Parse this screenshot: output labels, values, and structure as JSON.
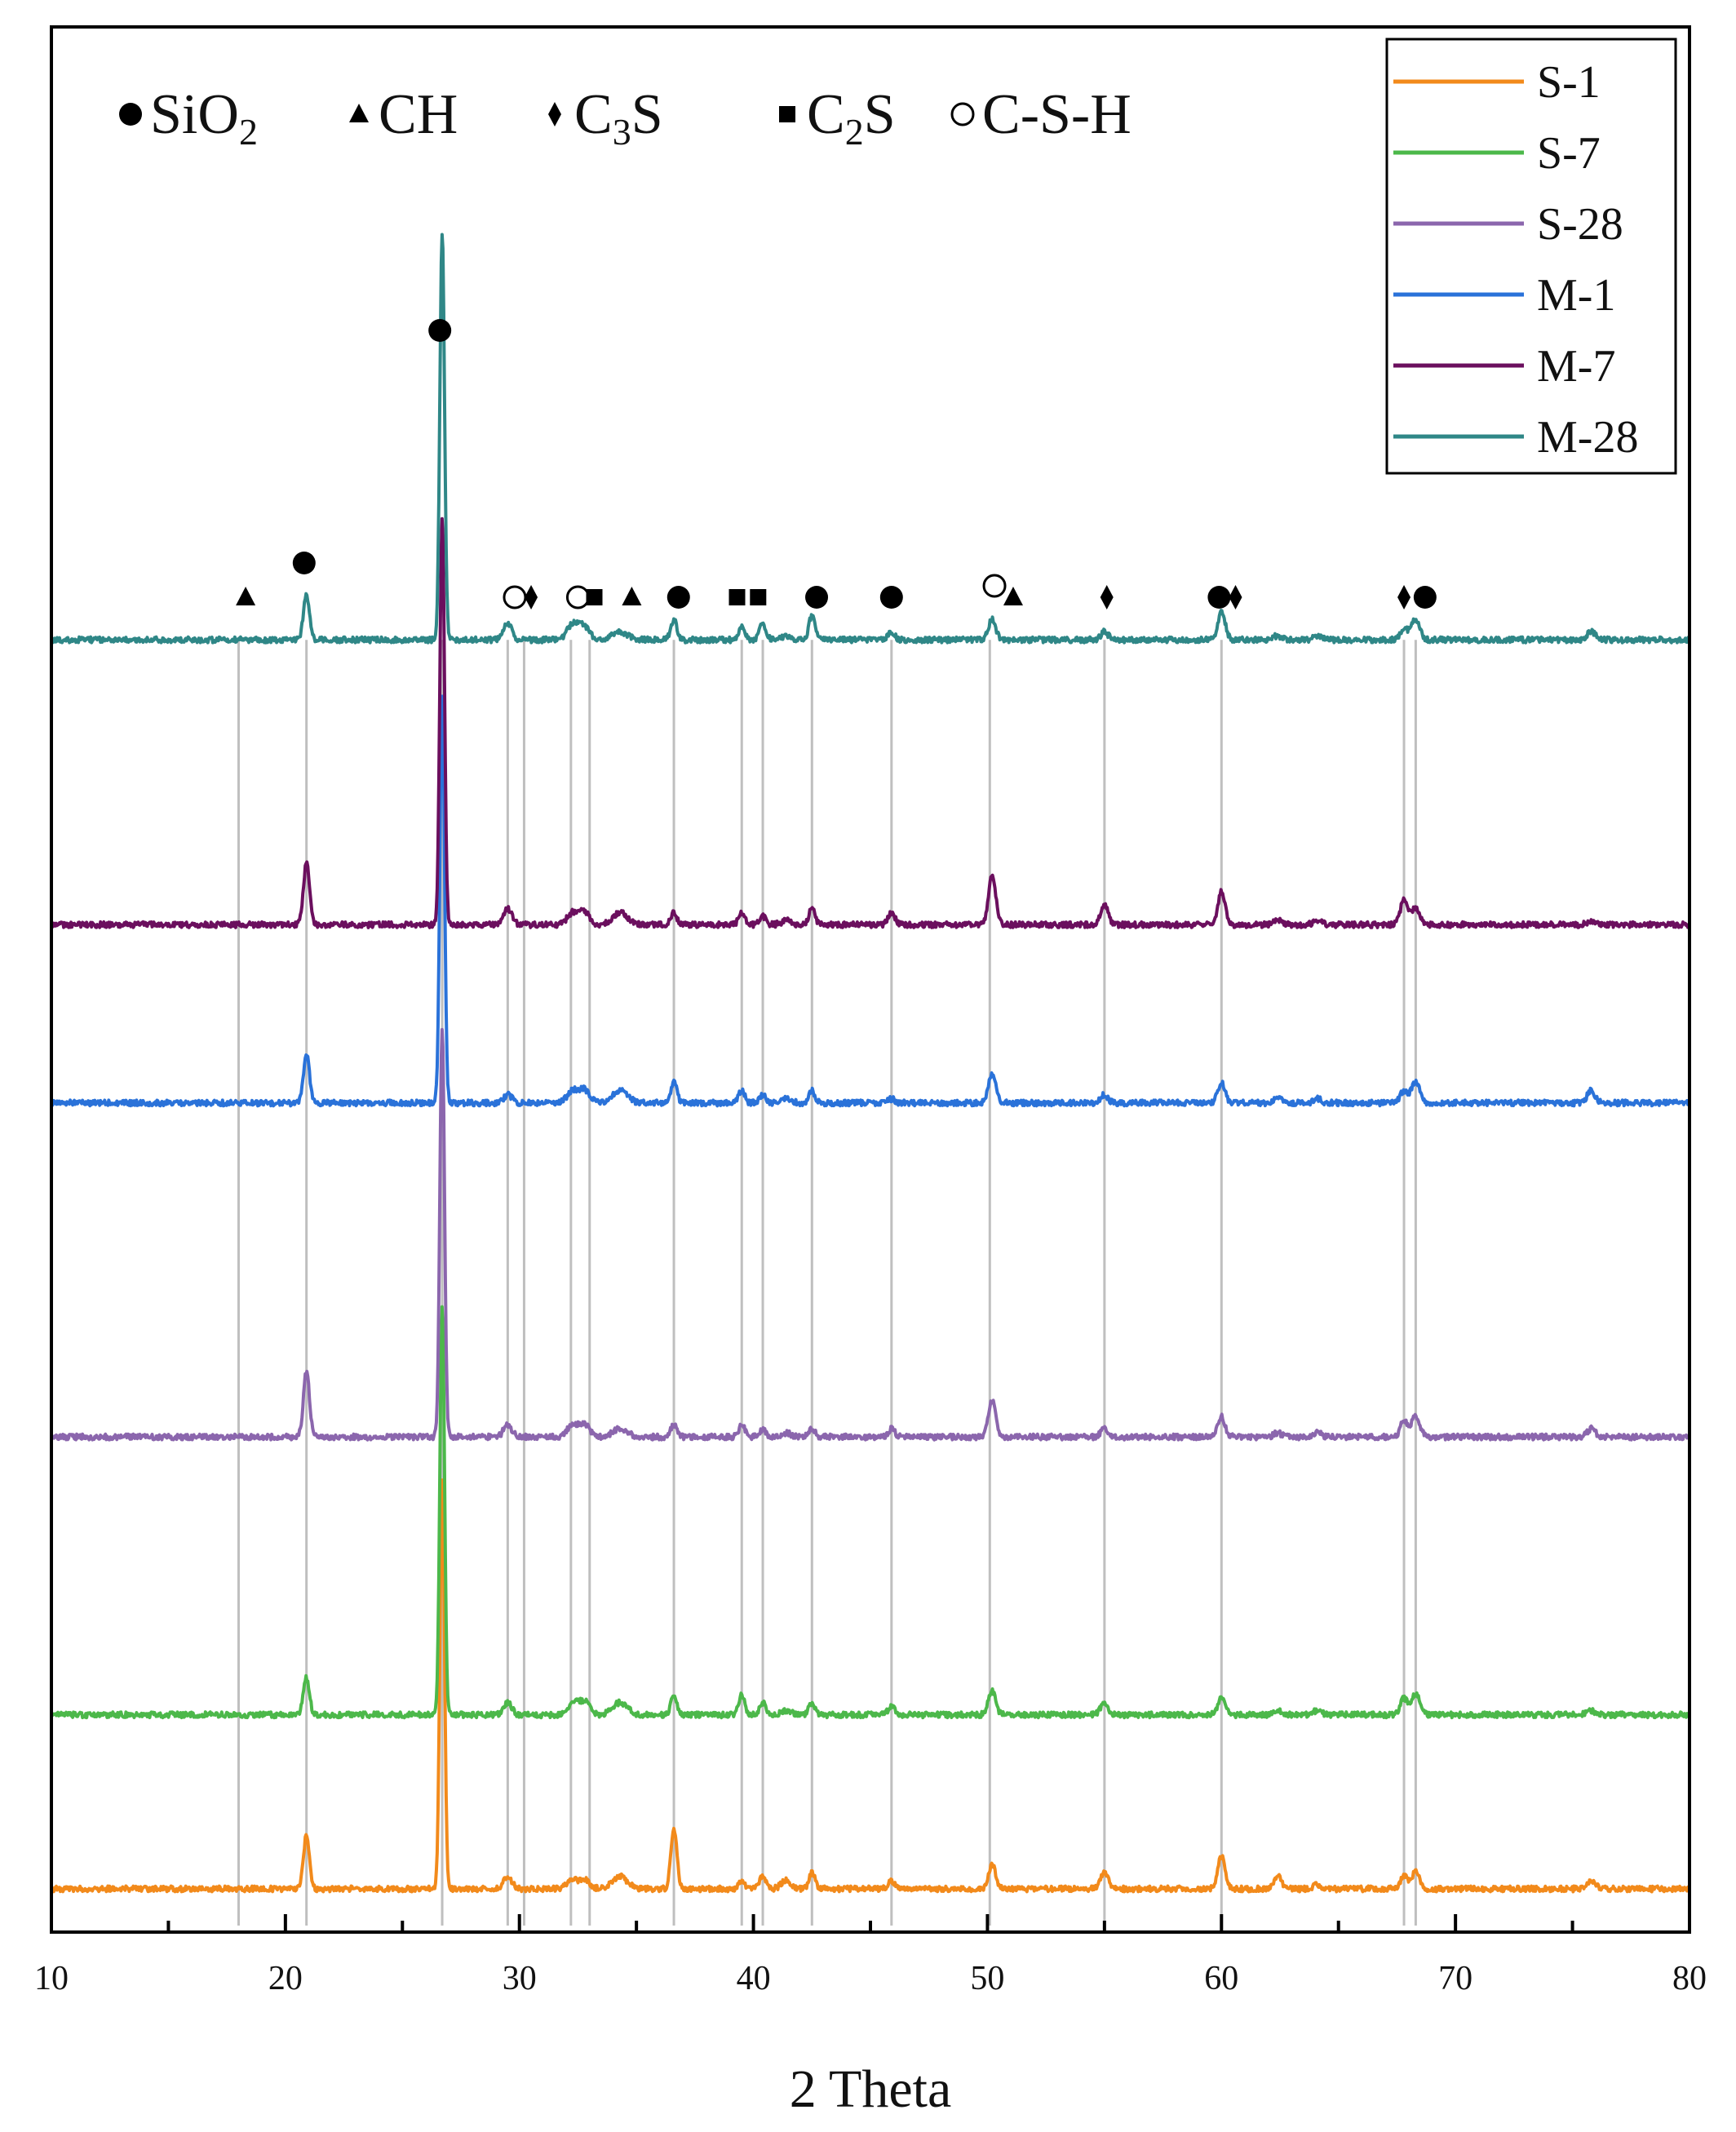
{
  "chart_data": {
    "type": "line",
    "title": "",
    "xlabel": "2 Theta",
    "ylabel": "",
    "xlim": [
      10,
      80
    ],
    "x_ticks": [
      10,
      20,
      30,
      40,
      50,
      60,
      70,
      80
    ],
    "grid": false,
    "legend_position": "top-right",
    "phase_legend": [
      {
        "marker": "filled-circle",
        "text": "SiO",
        "sub": "2",
        "tail": ""
      },
      {
        "marker": "filled-triangle",
        "text": "CH",
        "sub": "",
        "tail": ""
      },
      {
        "marker": "filled-diamond",
        "text": "C",
        "sub": "3",
        "tail": "S"
      },
      {
        "marker": "filled-square",
        "text": "C",
        "sub": "2",
        "tail": "S"
      },
      {
        "marker": "open-circle",
        "text": "C-S-H",
        "sub": "",
        "tail": ""
      }
    ],
    "reference_lines": [
      18.0,
      20.9,
      26.7,
      29.5,
      30.2,
      32.2,
      33.0,
      36.6,
      39.5,
      40.4,
      42.5,
      45.9,
      50.1,
      55.0,
      60.0,
      67.8,
      68.3
    ],
    "peak_markers": [
      {
        "x": 18.3,
        "marker": "filled-triangle"
      },
      {
        "x": 20.8,
        "marker": "filled-circle"
      },
      {
        "x": 26.6,
        "marker": "filled-circle"
      },
      {
        "x": 29.8,
        "marker": "open-circle"
      },
      {
        "x": 30.5,
        "marker": "filled-diamond"
      },
      {
        "x": 32.5,
        "marker": "open-circle"
      },
      {
        "x": 33.2,
        "marker": "filled-square"
      },
      {
        "x": 34.8,
        "marker": "filled-triangle"
      },
      {
        "x": 36.8,
        "marker": "filled-circle"
      },
      {
        "x": 39.3,
        "marker": "filled-square"
      },
      {
        "x": 40.2,
        "marker": "filled-square"
      },
      {
        "x": 42.7,
        "marker": "filled-circle"
      },
      {
        "x": 45.9,
        "marker": "filled-circle"
      },
      {
        "x": 50.3,
        "marker": "open-circle"
      },
      {
        "x": 51.1,
        "marker": "filled-triangle"
      },
      {
        "x": 55.1,
        "marker": "filled-diamond"
      },
      {
        "x": 59.9,
        "marker": "filled-circle"
      },
      {
        "x": 60.6,
        "marker": "filled-diamond"
      },
      {
        "x": 67.8,
        "marker": "filled-diamond"
      },
      {
        "x": 68.7,
        "marker": "filled-circle"
      }
    ],
    "peaks": [
      {
        "x": 20.9,
        "w": 0.18
      },
      {
        "x": 26.7,
        "w": 0.14
      },
      {
        "x": 29.5,
        "w": 0.25
      },
      {
        "x": 32.3,
        "w": 0.35
      },
      {
        "x": 32.8,
        "w": 0.3
      },
      {
        "x": 34.3,
        "w": 0.45
      },
      {
        "x": 36.6,
        "w": 0.18
      },
      {
        "x": 39.5,
        "w": 0.18
      },
      {
        "x": 40.4,
        "w": 0.2
      },
      {
        "x": 41.4,
        "w": 0.3
      },
      {
        "x": 42.5,
        "w": 0.18
      },
      {
        "x": 45.9,
        "w": 0.2
      },
      {
        "x": 50.2,
        "w": 0.22
      },
      {
        "x": 55.0,
        "w": 0.22
      },
      {
        "x": 60.0,
        "w": 0.22
      },
      {
        "x": 62.4,
        "w": 0.25
      },
      {
        "x": 64.1,
        "w": 0.25
      },
      {
        "x": 67.8,
        "w": 0.22
      },
      {
        "x": 68.3,
        "w": 0.25
      },
      {
        "x": 75.8,
        "w": 0.25
      }
    ],
    "series": [
      {
        "name": "S-1",
        "color": "#f28a1b",
        "offset": 0,
        "intensities": [
          0.13,
          1.0,
          0.03,
          0.02,
          0.02,
          0.03,
          0.15,
          0.02,
          0.03,
          0.02,
          0.04,
          0.02,
          0.06,
          0.04,
          0.08,
          0.03,
          0.01,
          0.03,
          0.04,
          0.02
        ]
      },
      {
        "name": "S-7",
        "color": "#4cb84a",
        "offset": 1.24,
        "intensities": [
          0.09,
          1.0,
          0.03,
          0.03,
          0.03,
          0.03,
          0.05,
          0.05,
          0.03,
          0.01,
          0.03,
          0.02,
          0.06,
          0.03,
          0.04,
          0.01,
          0.01,
          0.04,
          0.05,
          0.01
        ]
      },
      {
        "name": "S-28",
        "color": "#8b66ad",
        "offset": 3.22,
        "intensities": [
          0.16,
          1.0,
          0.03,
          0.03,
          0.03,
          0.02,
          0.03,
          0.03,
          0.02,
          0.01,
          0.02,
          0.02,
          0.09,
          0.02,
          0.05,
          0.01,
          0.01,
          0.04,
          0.05,
          0.02
        ]
      },
      {
        "name": "M-1",
        "color": "#2a72d9",
        "offset": 5.6,
        "intensities": [
          0.12,
          1.0,
          0.02,
          0.03,
          0.03,
          0.03,
          0.05,
          0.03,
          0.02,
          0.01,
          0.03,
          0.01,
          0.07,
          0.02,
          0.05,
          0.01,
          0.01,
          0.03,
          0.05,
          0.03
        ]
      },
      {
        "name": "M-7",
        "color": "#6b0f5e",
        "offset": 6.87,
        "intensities": [
          0.15,
          1.0,
          0.04,
          0.03,
          0.03,
          0.03,
          0.03,
          0.03,
          0.02,
          0.01,
          0.04,
          0.03,
          0.12,
          0.05,
          0.08,
          0.01,
          0.01,
          0.06,
          0.04,
          0.01
        ]
      },
      {
        "name": "M-28",
        "color": "#2f8787",
        "offset": 8.9,
        "intensities": [
          0.11,
          1.0,
          0.04,
          0.04,
          0.03,
          0.02,
          0.05,
          0.03,
          0.04,
          0.01,
          0.06,
          0.02,
          0.05,
          0.02,
          0.07,
          0.01,
          0.01,
          0.03,
          0.05,
          0.02
        ]
      }
    ]
  }
}
